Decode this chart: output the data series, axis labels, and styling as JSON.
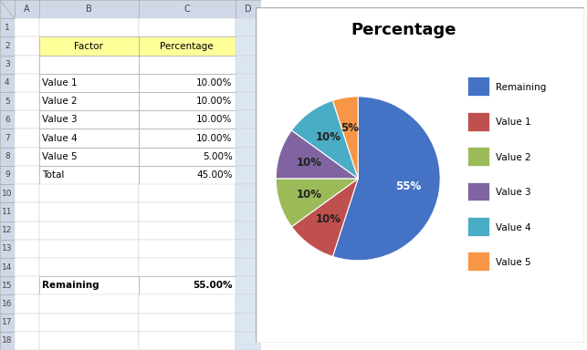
{
  "title": "Percentage",
  "labels": [
    "Remaining",
    "Value 1",
    "Value 2",
    "Value 3",
    "Value 4",
    "Value 5"
  ],
  "values": [
    55,
    10,
    10,
    10,
    10,
    5
  ],
  "colors": [
    "#4472C4",
    "#C0504D",
    "#9BBB59",
    "#8064A2",
    "#4BACC6",
    "#F79646"
  ],
  "pct_labels": [
    "55%",
    "10%",
    "10%",
    "10%",
    "10%",
    "5%"
  ],
  "bg_color": "#FFFFFF",
  "header_bg": "#FFFF99",
  "col_header_bg": "#D0D8E8",
  "cell_bg": "#FFFFFF",
  "chart_bg": "#FFFFFF",
  "col_labels": [
    "A",
    "B",
    "C",
    "D"
  ],
  "num_rows": 18,
  "cell_data": {
    "2_B": [
      "Factor",
      "center",
      false
    ],
    "2_C": [
      "Percentage",
      "center",
      false
    ],
    "4_B": [
      "Value 1",
      "left",
      false
    ],
    "4_C": [
      "10.00%",
      "right",
      false
    ],
    "5_B": [
      "Value 2",
      "left",
      false
    ],
    "5_C": [
      "10.00%",
      "right",
      false
    ],
    "6_B": [
      "Value 3",
      "left",
      false
    ],
    "6_C": [
      "10.00%",
      "right",
      false
    ],
    "7_B": [
      "Value 4",
      "left",
      false
    ],
    "7_C": [
      "10.00%",
      "right",
      false
    ],
    "8_B": [
      "Value 5",
      "left",
      false
    ],
    "8_C": [
      "5.00%",
      "right",
      false
    ],
    "9_B": [
      "Total",
      "left",
      false
    ],
    "9_C": [
      "45.00%",
      "right",
      false
    ],
    "15_B": [
      "Remaining",
      "left",
      true
    ],
    "15_C": [
      "55.00%",
      "right",
      true
    ]
  }
}
